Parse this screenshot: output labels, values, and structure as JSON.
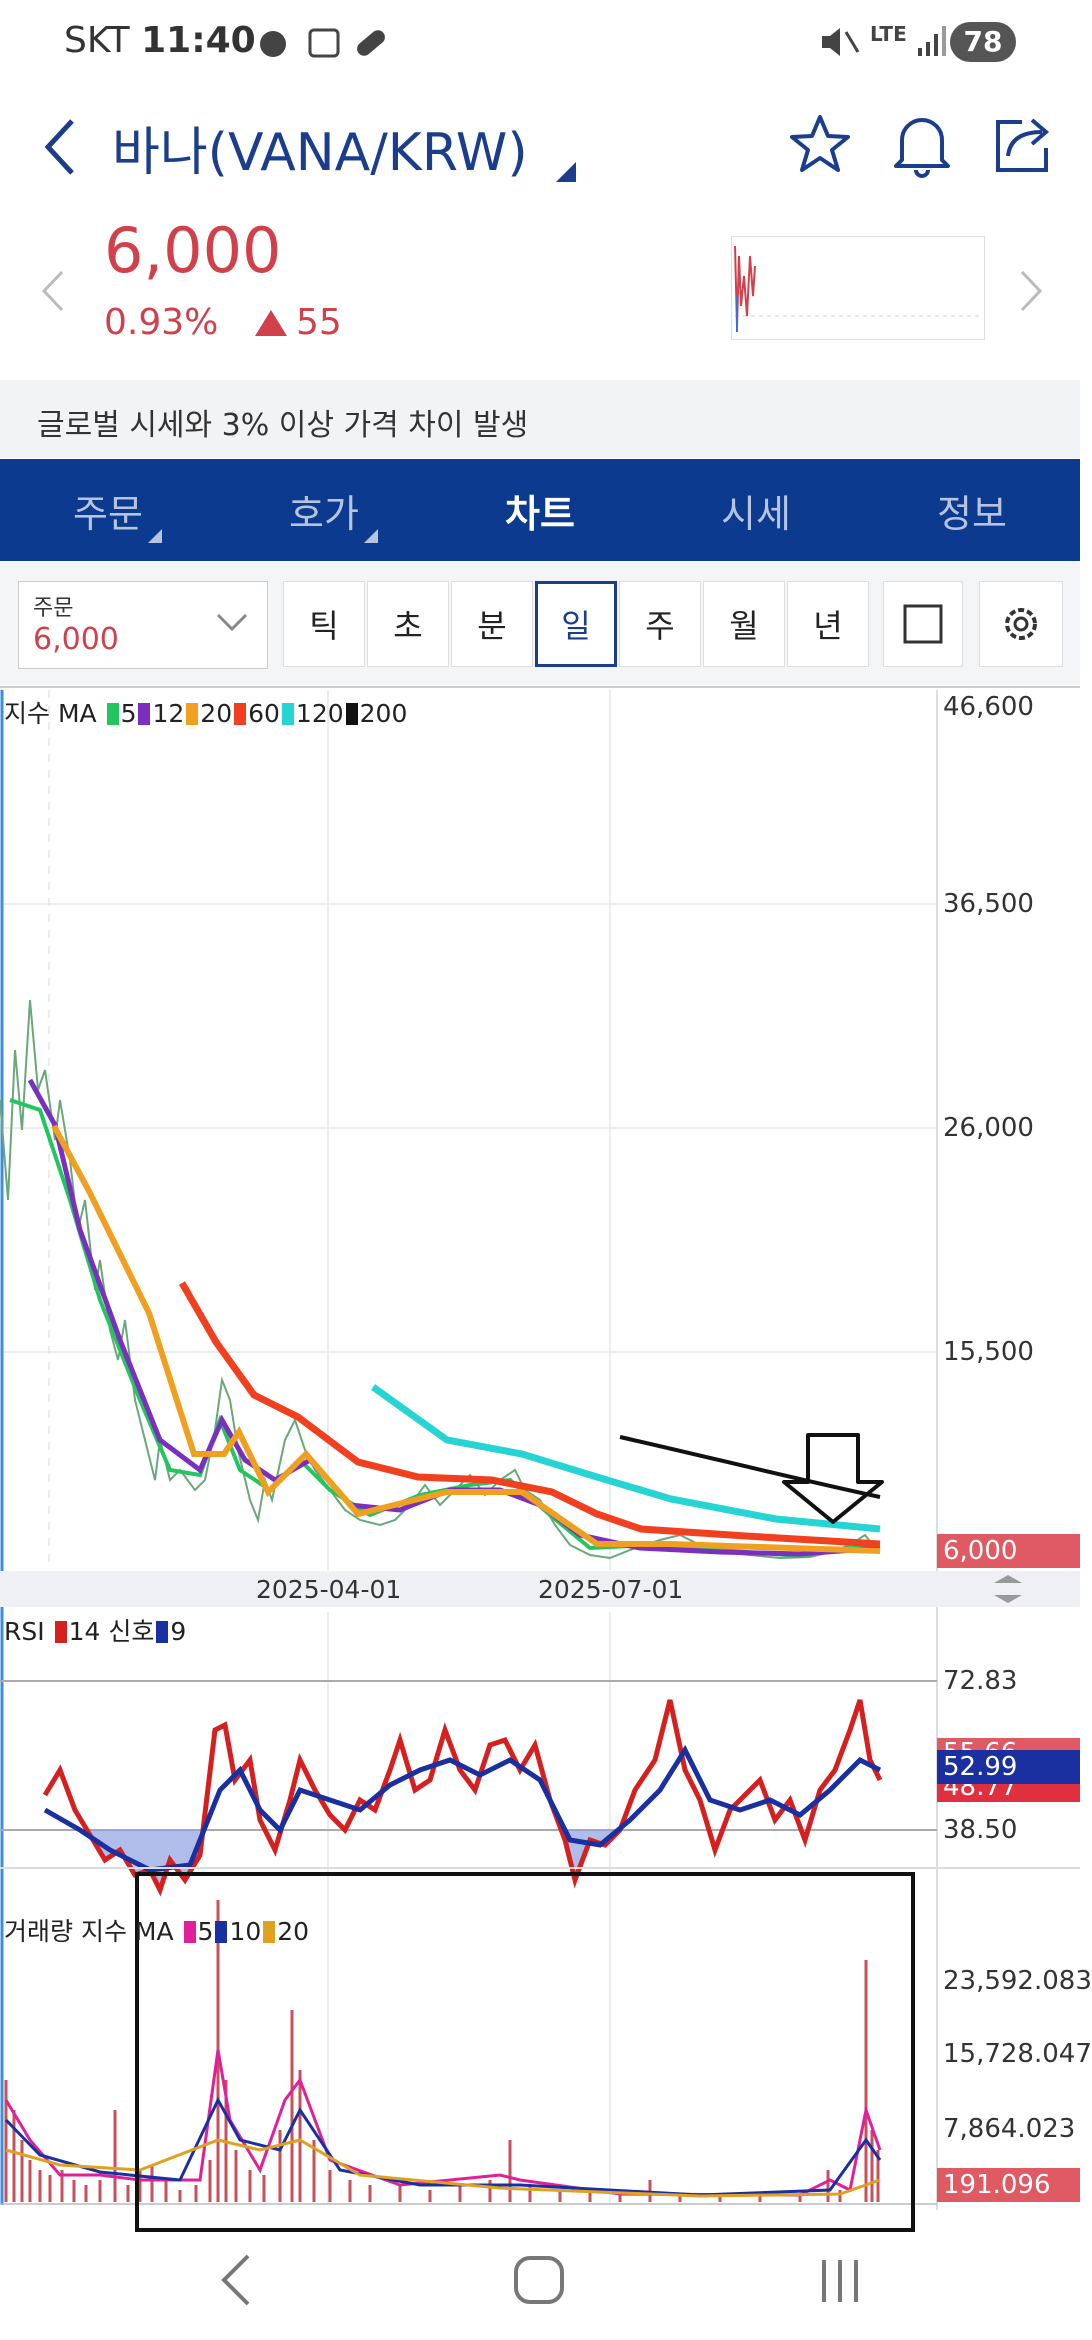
{
  "status_bar": {
    "carrier": "SKT",
    "time": "11:40",
    "network": "LTE",
    "battery": "78"
  },
  "header": {
    "title": "바나(VANA/KRW)"
  },
  "quote": {
    "price": "6,000",
    "change_percent": "0.93%",
    "change": "55"
  },
  "notice": "글로벌 시세와 3% 이상 가격 차이 발생",
  "tabs": [
    "주문",
    "호가",
    "차트",
    "시세",
    "정보"
  ],
  "order_box": {
    "label": "주문",
    "value": "6,000"
  },
  "periods": [
    "틱",
    "초",
    "분",
    "일",
    "주",
    "월",
    "년"
  ],
  "price_chart": {
    "legend": {
      "label": "지수 MA",
      "periods": [
        "5",
        "12",
        "20",
        "60",
        "120",
        "200"
      ]
    },
    "y_labels": [
      "46,600",
      "36,500",
      "26,000",
      "15,500"
    ],
    "current": "6,000",
    "x_labels": [
      "2025-04-01",
      "2025-07-01"
    ]
  },
  "rsi": {
    "legend": {
      "label": "RSI",
      "period": "14",
      "signal_label": "신호",
      "signal": "9"
    },
    "y_labels": [
      "72.83",
      "38.50"
    ],
    "tags": [
      "55.66",
      "52.99",
      "48.77"
    ]
  },
  "volume": {
    "legend": {
      "label": "거래량 지수 MA",
      "periods": [
        "5",
        "10",
        "20"
      ]
    },
    "y_labels": [
      "23,592.083",
      "15,728.047",
      "7,864.023"
    ],
    "current": "191.096"
  }
}
